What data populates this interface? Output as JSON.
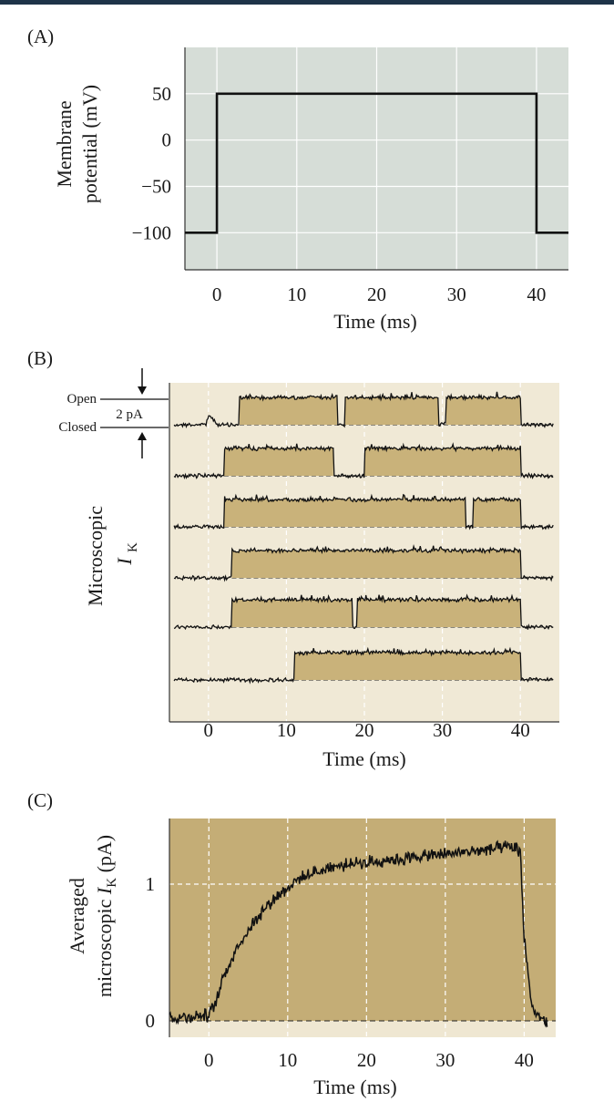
{
  "colors": {
    "panel_a_bg": "#d6ddd7",
    "panel_b_bg": "#f0e9d6",
    "panel_c_bg": "#c4ad76",
    "fill": "#c9b27a",
    "trace": "#111111",
    "top_bar": "#1e3348"
  },
  "chart_data": [
    {
      "panel_label": "(A)",
      "type": "line",
      "ylabel_line1": "Membrane",
      "ylabel_line2": "potential (mV)",
      "xlabel": "Time (ms)",
      "xlim": [
        -4,
        44
      ],
      "ylim": [
        -140,
        100
      ],
      "xticks": [
        0,
        10,
        20,
        30,
        40
      ],
      "xtick_labels": [
        "0",
        "10",
        "20",
        "30",
        "40"
      ],
      "yticks": [
        50,
        0,
        -50,
        -100
      ],
      "ytick_labels": [
        "50",
        "0",
        "−50",
        "−100"
      ],
      "grid": true,
      "series": [
        {
          "x": [
            -4,
            0,
            0,
            40,
            40,
            44
          ],
          "y": [
            -100,
            -100,
            50,
            50,
            -100,
            -100
          ]
        }
      ]
    },
    {
      "panel_label": "(B)",
      "type": "line",
      "ylabel_line1": "Microscopic",
      "ylabel_symbol": "I",
      "ylabel_subscript": "K",
      "xlabel": "Time (ms)",
      "xlim": [
        -5,
        45
      ],
      "xticks": [
        0,
        10,
        20,
        30,
        40
      ],
      "xtick_labels": [
        "0",
        "10",
        "20",
        "30",
        "40"
      ],
      "scale_bar": {
        "open_label": "Open",
        "closed_label": "Closed",
        "amplitude_label": "2 pA"
      },
      "grid": true,
      "sweeps": [
        {
          "open_intervals": [
            [
              4,
              16.5
            ],
            [
              17.5,
              29.5
            ],
            [
              30.5,
              40
            ]
          ],
          "transient_at": 0
        },
        {
          "open_intervals": [
            [
              2,
              16
            ],
            [
              20,
              40
            ]
          ]
        },
        {
          "open_intervals": [
            [
              2,
              33
            ],
            [
              34,
              40
            ]
          ]
        },
        {
          "open_intervals": [
            [
              3,
              40
            ]
          ]
        },
        {
          "open_intervals": [
            [
              3,
              18.5
            ],
            [
              19,
              40
            ]
          ]
        },
        {
          "open_intervals": [
            [
              11,
              40
            ]
          ]
        }
      ]
    },
    {
      "panel_label": "(C)",
      "type": "line",
      "ylabel_line1": "Averaged",
      "ylabel_line2_prefix": "microscopic ",
      "ylabel_symbol": "I",
      "ylabel_subscript": "K",
      "ylabel_suffix": " (pA)",
      "xlabel": "Time (ms)",
      "xlim": [
        -5,
        44
      ],
      "ylim": [
        -0.12,
        1.48
      ],
      "xticks": [
        0,
        10,
        20,
        30,
        40
      ],
      "xtick_labels": [
        "0",
        "10",
        "20",
        "30",
        "40"
      ],
      "yticks": [
        1,
        0
      ],
      "ytick_labels": [
        "1",
        "0"
      ],
      "grid": true,
      "series": [
        {
          "x": [
            -5,
            0,
            1,
            2,
            4,
            6,
            8,
            10,
            12,
            15,
            20,
            25,
            30,
            35,
            38,
            39.5,
            40,
            41,
            42,
            43
          ],
          "y": [
            0.02,
            0.04,
            0.15,
            0.35,
            0.58,
            0.75,
            0.88,
            0.98,
            1.05,
            1.12,
            1.16,
            1.19,
            1.22,
            1.25,
            1.27,
            1.25,
            0.6,
            0.1,
            0.02,
            -0.02
          ]
        }
      ]
    }
  ]
}
